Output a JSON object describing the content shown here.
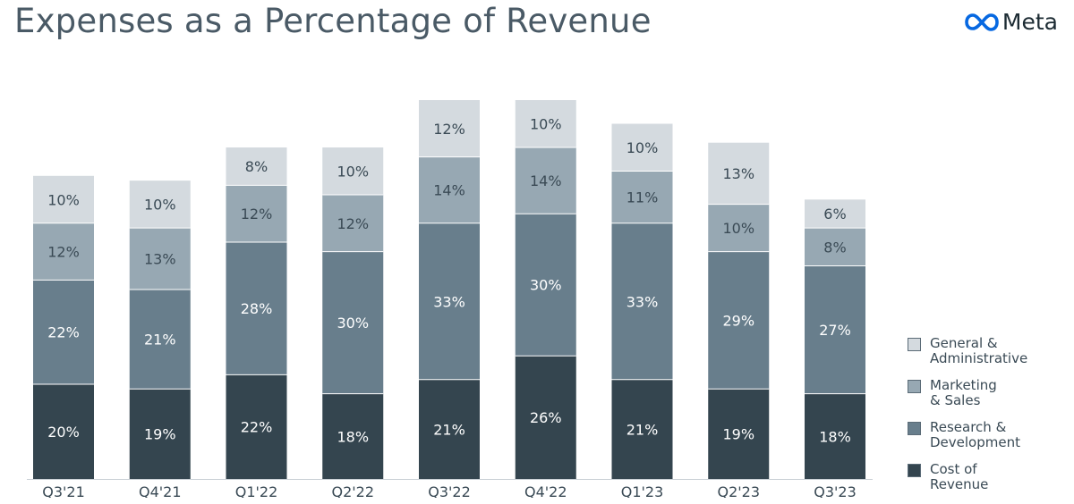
{
  "header": {
    "title": "Expenses as a Percentage of Revenue",
    "logo_text": "Meta"
  },
  "colors": {
    "general_admin": "#d4dadf",
    "marketing_sales": "#97a8b3",
    "research_dev": "#687e8c",
    "cost_revenue": "#34454f",
    "label_dark": "#3a4a55",
    "label_light": "#ffffff",
    "logo_blue": "#0668e1"
  },
  "chart_data": {
    "type": "bar",
    "stacked": true,
    "title": "Expenses as a Percentage of Revenue",
    "xlabel": "",
    "ylabel": "",
    "categories": [
      "Q3'21",
      "Q4'21",
      "Q1'22",
      "Q2'22",
      "Q3'22",
      "Q4'22",
      "Q1'23",
      "Q2'23",
      "Q3'23"
    ],
    "series": [
      {
        "key": "cost_revenue",
        "name": "Cost of\nRevenue",
        "values": [
          20,
          19,
          22,
          18,
          21,
          26,
          21,
          19,
          18
        ]
      },
      {
        "key": "research_dev",
        "name": "Research &\nDevelopment",
        "values": [
          22,
          21,
          28,
          30,
          33,
          30,
          33,
          29,
          27
        ]
      },
      {
        "key": "marketing_sales",
        "name": "Marketing\n& Sales",
        "values": [
          12,
          13,
          12,
          12,
          14,
          14,
          11,
          10,
          8
        ]
      },
      {
        "key": "general_admin",
        "name": "General &\nAdministrative",
        "values": [
          10,
          10,
          8,
          10,
          12,
          10,
          10,
          13,
          6
        ]
      }
    ],
    "value_suffix": "%",
    "ylim": [
      0,
      80
    ],
    "grid": false,
    "legend_position": "right"
  }
}
